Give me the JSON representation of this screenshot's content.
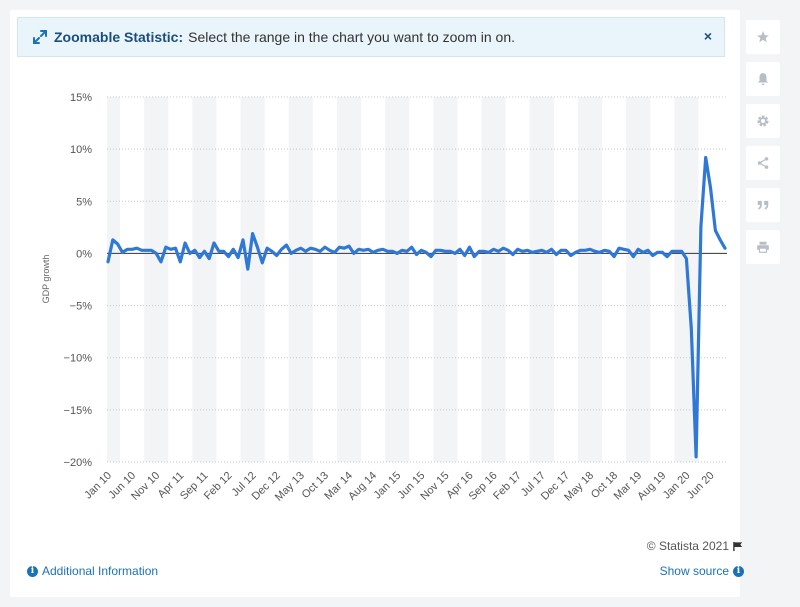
{
  "banner": {
    "icon": "expand-arrows-icon",
    "title": "Zoomable Statistic:",
    "text": "Select the range in the chart you want to zoom in on.",
    "close_label": "×"
  },
  "sidebar": {
    "items": [
      {
        "name": "star-icon"
      },
      {
        "name": "bell-icon"
      },
      {
        "name": "gear-icon"
      },
      {
        "name": "share-icon"
      },
      {
        "name": "quote-icon"
      },
      {
        "name": "print-icon"
      }
    ]
  },
  "footer": {
    "credit": "© Statista 2021",
    "additional_info": "Additional Information",
    "show_source": "Show source"
  },
  "colors": {
    "line": "#2f78d6",
    "accent_link": "#1a72b8",
    "band": "#f3f4f6",
    "grid": "#c8c8c8"
  },
  "chart_data": {
    "type": "line",
    "title": "",
    "xlabel": "",
    "ylabel": "GDP growth",
    "ylim": [
      -20,
      15
    ],
    "yticks": [
      15,
      10,
      5,
      0,
      -5,
      -10,
      -15,
      -20
    ],
    "ytick_labels": [
      "15%",
      "10%",
      "5%",
      "0%",
      "−5%",
      "−10%",
      "−15%",
      "−20%"
    ],
    "x_tick_labels": [
      "Jan 10",
      "Jun 10",
      "Nov 10",
      "Apr 11",
      "Sep 11",
      "Feb 12",
      "Jul 12",
      "Dec 12",
      "May 13",
      "Oct 13",
      "Mar 14",
      "Aug 14",
      "Jan 15",
      "Jun 15",
      "Nov 15",
      "Apr 16",
      "Sep 16",
      "Feb 17",
      "Jul 17",
      "Dec 17",
      "May 18",
      "Oct 18",
      "Mar 19",
      "Aug 19",
      "Jan 20",
      "Jun 20"
    ],
    "x_start": "Jan 10",
    "grid": true,
    "series": [
      {
        "values": [
          -0.8,
          1.3,
          0.9,
          0.1,
          0.4,
          0.4,
          0.5,
          0.3,
          0.3,
          0.3,
          0.0,
          -0.8,
          0.6,
          0.4,
          0.5,
          -0.8,
          1.0,
          0.0,
          0.3,
          -0.4,
          0.2,
          -0.5,
          1.0,
          0.2,
          0.2,
          -0.3,
          0.4,
          -0.4,
          1.3,
          -1.5,
          1.9,
          0.6,
          -0.9,
          0.5,
          0.2,
          -0.2,
          0.4,
          0.8,
          0.0,
          0.3,
          0.5,
          0.2,
          0.5,
          0.4,
          0.2,
          0.6,
          0.3,
          0.1,
          0.6,
          0.5,
          0.7,
          0.0,
          0.4,
          0.3,
          0.4,
          0.1,
          0.3,
          0.4,
          0.2,
          0.2,
          0.0,
          0.3,
          0.2,
          0.6,
          -0.1,
          0.3,
          0.1,
          -0.3,
          0.3,
          0.3,
          0.2,
          0.2,
          0.0,
          0.4,
          -0.2,
          0.6,
          -0.3,
          0.2,
          0.2,
          0.1,
          0.4,
          0.2,
          0.5,
          0.3,
          -0.1,
          0.4,
          0.2,
          0.3,
          0.1,
          0.2,
          0.3,
          0.1,
          0.4,
          -0.1,
          0.3,
          0.3,
          -0.2,
          0.1,
          0.3,
          0.3,
          0.4,
          0.2,
          0.1,
          0.3,
          0.2,
          -0.3,
          0.5,
          0.4,
          0.3,
          -0.3,
          0.4,
          0.1,
          0.3,
          -0.2,
          0.1,
          0.1,
          -0.3,
          0.2,
          0.2,
          0.2,
          -0.5,
          -7.2,
          -19.5,
          2.6,
          9.2,
          6.3,
          2.2,
          1.3,
          0.5
        ]
      }
    ]
  }
}
